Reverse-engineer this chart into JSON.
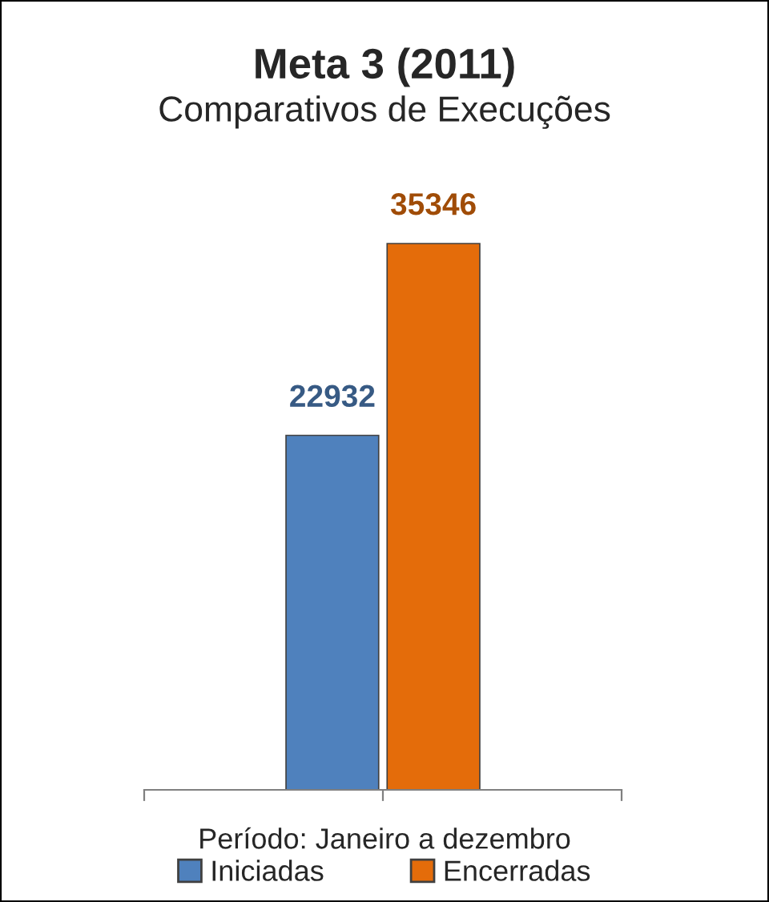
{
  "chart_data": {
    "type": "bar",
    "title": "Meta 3 (2011)",
    "subtitle": "Comparativos de Execuções",
    "xlabel": "Período: Janeiro a dezembro",
    "categories": [
      null
    ],
    "series": [
      {
        "name": "Iniciadas",
        "color": "#4f81bd",
        "values": [
          22932
        ]
      },
      {
        "name": "Encerradas",
        "color": "#e46c0a",
        "values": [
          35346
        ]
      }
    ],
    "data_labels": true,
    "legend": "bottom",
    "grid": false
  }
}
